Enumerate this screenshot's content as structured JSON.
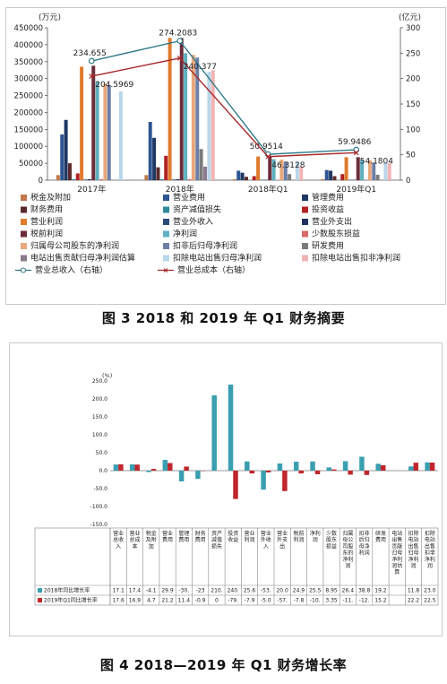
{
  "captions": {
    "fig3": "图 3    2018 和 2019 年 Q1 财务摘要",
    "fig4": "图 4    2018—2019 年 Q1 财务增长率"
  },
  "chart_data": [
    {
      "type": "bar",
      "title": "",
      "left_axis_unit": "(万元)",
      "right_axis_unit": "(亿元)",
      "ylim": [
        0,
        450000
      ],
      "y_ticks": [
        "0",
        "50000",
        "100000",
        "150000",
        "200000",
        "250000",
        "300000",
        "350000",
        "400000",
        "450000"
      ],
      "y2lim": [
        0,
        300
      ],
      "y2_ticks": [
        "0",
        "50",
        "100",
        "150",
        "200",
        "250",
        "300"
      ],
      "categories": [
        "2017年",
        "2018年",
        "2018年Q1",
        "2019年Q1"
      ],
      "series": [
        {
          "name": "税金及附加",
          "color": "#c0784a",
          "values": [
            15000,
            15000,
            3000,
            3000
          ]
        },
        {
          "name": "营业费用",
          "color": "#2f5593",
          "values": [
            135000,
            172000,
            28000,
            30000
          ]
        },
        {
          "name": "管理费用",
          "color": "#1f3864",
          "values": [
            178000,
            125000,
            22000,
            28000
          ]
        },
        {
          "name": "财务费用",
          "color": "#5a2a2a",
          "values": [
            50000,
            38000,
            10000,
            12000
          ]
        },
        {
          "name": "资产减值损失",
          "color": "#2e8b9a",
          "values": [
            3000,
            3000,
            0,
            0
          ]
        },
        {
          "name": "投资收益",
          "color": "#b22222",
          "values": [
            20000,
            72000,
            12000,
            18000
          ]
        },
        {
          "name": "营业利润",
          "color": "#e07b2c",
          "values": [
            335000,
            420000,
            70000,
            68000
          ]
        },
        {
          "name": "营业外收入",
          "color": "#2c4a7a",
          "values": [
            2000,
            2000,
            1000,
            1000
          ]
        },
        {
          "name": "营业外支出",
          "color": "#203060",
          "values": [
            3000,
            3000,
            1000,
            1000
          ]
        },
        {
          "name": "税前利润",
          "color": "#6b2d3a",
          "values": [
            338000,
            420000,
            70000,
            68000
          ]
        },
        {
          "name": "净利润",
          "color": "#5fb0c0",
          "values": [
            290000,
            375000,
            62000,
            60000
          ]
        },
        {
          "name": "少数股东损益",
          "color": "#d96a6a",
          "values": [
            3000,
            3000,
            1000,
            1000
          ]
        },
        {
          "name": "归属母公司股东的净利润",
          "color": "#e8a87c",
          "values": [
            285000,
            370000,
            61000,
            59000
          ]
        },
        {
          "name": "扣非后归母净利润",
          "color": "#6d7fa8",
          "values": [
            280000,
            362000,
            55000,
            52000
          ]
        },
        {
          "name": "研发费用",
          "color": "#7b7b7b",
          "values": [
            0,
            92000,
            18000,
            16000
          ]
        },
        {
          "name": "电站出售贡献归母净利润估算",
          "color": "#8c7a8f",
          "values": [
            0,
            40000,
            0,
            0
          ]
        },
        {
          "name": "扣除电站出售归母净利润",
          "color": "#b9d6ea",
          "values": [
            262000,
            320000,
            55000,
            52000
          ]
        },
        {
          "name": "扣除电站出售扣非净利润",
          "color": "#f2b3b3",
          "values": [
            0,
            325000,
            40000,
            50000
          ]
        }
      ],
      "lines": [
        {
          "name": "营业总收入（右轴）",
          "axis": "right",
          "color": "#2f7a8a",
          "marker": "circle-open",
          "values": [
            234.655,
            274.2083,
            50.9514,
            59.9486
          ],
          "labels": [
            "234.655",
            "274.2083",
            "50.9514",
            "59.9486"
          ]
        },
        {
          "name": "营业总成本（右轴）",
          "axis": "right",
          "color": "#a82a2a",
          "marker": "x",
          "values": [
            204.5969,
            240.377,
            46.3128,
            54.1804
          ],
          "labels": [
            "204.5969",
            "240.377",
            "46.3128",
            "54.1804"
          ]
        }
      ],
      "legend_position": "bottom"
    },
    {
      "type": "bar",
      "title": "",
      "y_unit": "(%)",
      "ylim": [
        -150,
        250
      ],
      "y_ticks": [
        "250.0",
        "200.0",
        "150.0",
        "100.0",
        "50.0",
        "0.0",
        "-50.0",
        "-100.0",
        "-150.0"
      ],
      "categories": [
        "营业总收入",
        "营业总成本",
        "税金及附加",
        "营业费用",
        "管理费用",
        "财务费用",
        "资产减值损失",
        "投资收益",
        "营业利润",
        "营业外收入",
        "营业外支出",
        "税前利润",
        "净利润",
        "少数股东损益",
        "归属母公司股东的净利润",
        "扣非后归母净利润",
        "研发费用",
        "电站出售贡献归母净利润估算",
        "扣除电站出售归母净利润",
        "扣除电站出售扣非净利润"
      ],
      "category_labels": [
        "营业总收入",
        "营业总成本",
        "税金及附加",
        "营业费用",
        "管理费用",
        "财务费用",
        "资产减值损失",
        "投资收益",
        "营业利润",
        "营业外收入",
        "营业外支出",
        "税前利润",
        "净利润",
        "少数股东损益",
        "归属母公司股东的净利润",
        "扣非后归母净利润",
        "研发费用",
        "电站出售贡献归母净利润估算",
        "扣除电站出售归母净利润",
        "扣除电站出售扣非净利润"
      ],
      "series": [
        {
          "name": "2018年同比增长率",
          "color": "#3a9fb0",
          "values": [
            17.1,
            17.4,
            -4.1,
            29.9,
            -30,
            -23,
            210,
            240,
            25.6,
            -53,
            20.0,
            24.9,
            25.5,
            8.95,
            26.4,
            38.8,
            19.2,
            null,
            11.8,
            23.0
          ],
          "cells": [
            "17.1",
            "17.4",
            "-4.1",
            "29.9",
            "-30.",
            "-23",
            "210.",
            "240.",
            "25.6",
            "-53.",
            "20.0",
            "24.9",
            "25.5",
            "8.95",
            "26.4",
            "38.8",
            "19.2",
            "",
            "11.8",
            "23.0"
          ]
        },
        {
          "name": "2019年Q1同比增长率",
          "color": "#c0262d",
          "values": [
            17.6,
            16.9,
            4.7,
            21.2,
            11.4,
            -0.9,
            0,
            -79,
            -7.9,
            -5.0,
            -57,
            -7.8,
            -10,
            3.35,
            -11,
            -12,
            15.2,
            null,
            22.2,
            22.5
          ],
          "cells": [
            "17.6",
            "16.9",
            "4.7",
            "21.2",
            "11.4",
            "-0.9",
            "0",
            "-79.",
            "-7.9",
            "-5.0",
            "-57.",
            "-7.8",
            "-10.",
            "3.35",
            "-11.",
            "-12.",
            "15.2",
            "",
            "22.2",
            "22.5"
          ]
        }
      ],
      "legend_position": "bottom"
    }
  ]
}
